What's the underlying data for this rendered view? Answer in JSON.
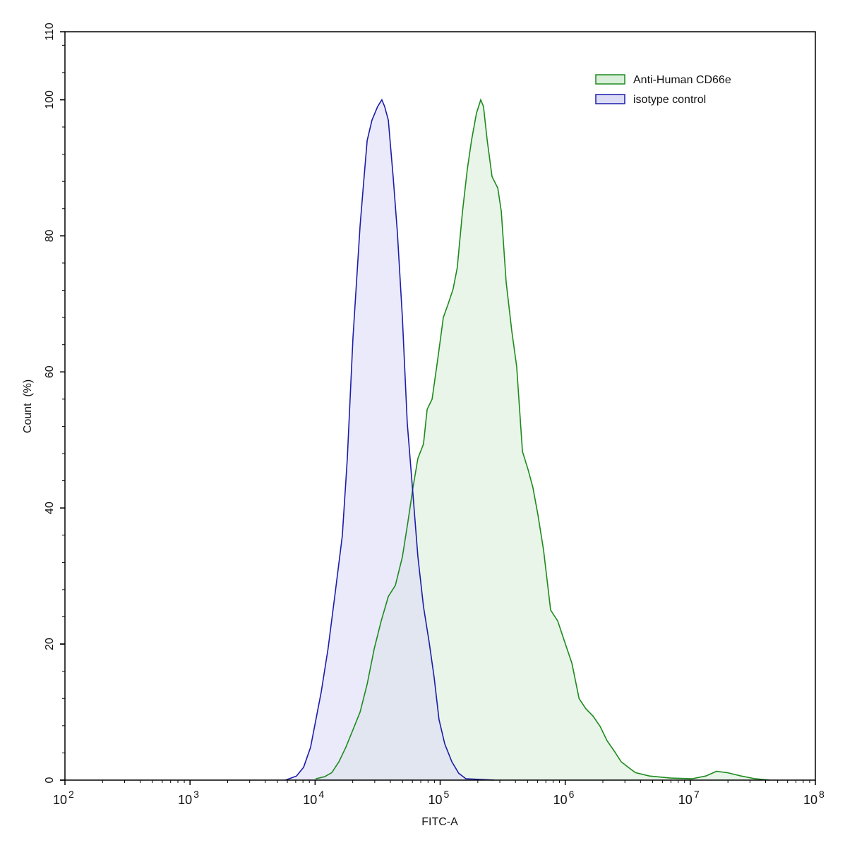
{
  "chart_data": {
    "type": "area",
    "title": "",
    "xlabel": "FITC-A",
    "ylabel": "Count  (%)",
    "x_scale": "log",
    "xlim": [
      100,
      100000000
    ],
    "ylim": [
      0,
      110
    ],
    "grid": false,
    "legend_placement": "top-right",
    "x_ticks": [
      {
        "base": "10",
        "exp": "2",
        "value": 100
      },
      {
        "base": "10",
        "exp": "3",
        "value": 1000
      },
      {
        "base": "10",
        "exp": "4",
        "value": 10000
      },
      {
        "base": "10",
        "exp": "5",
        "value": 100000
      },
      {
        "base": "10",
        "exp": "6",
        "value": 1000000
      },
      {
        "base": "10",
        "exp": "7",
        "value": 10000000
      },
      {
        "base": "10",
        "exp": "8",
        "value": 100000000
      }
    ],
    "y_ticks": [
      "0",
      "20",
      "40",
      "60",
      "80",
      "100",
      "110"
    ],
    "series": [
      {
        "name": "Anti-Human CD66e",
        "line_color": "#1e8a1e",
        "fill_color": "#d9efd9",
        "x": [
          10100.0,
          11900.0,
          13600.0,
          15500.0,
          17600.0,
          20100.0,
          22900.0,
          26100.0,
          29700.0,
          33800.0,
          38500.0,
          43800.0,
          49900.0,
          55300.0,
          60600.0,
          66400.0,
          73600.0,
          78700.0,
          86200.0,
          95500.0,
          106000.0,
          116000.0,
          127000.0,
          137000.0,
          151000.0,
          165000.0,
          178000.0,
          195000.0,
          211000.0,
          222000.0,
          238000.0,
          260000.0,
          289000.0,
          308000.0,
          337000.0,
          374000.0,
          409000.0,
          455000.0,
          504000.0,
          552000.0,
          605000.0,
          671000.0,
          764000.0,
          871000.0,
          991000.0,
          1130000.0,
          1290000.0,
          1460000.0,
          1670000.0,
          1900000.0,
          2160000.0,
          2460000.0,
          2800000.0,
          3190000.0,
          3640000.0,
          4710000.0,
          6960000.0,
          10300000.0,
          13300000.0,
          16200000.0,
          19700000.0,
          25500000.0,
          33100000.0,
          43000000.0
        ],
        "y": [
          0.2,
          0.5,
          1.1,
          2.7,
          4.8,
          7.4,
          10,
          14.1,
          19.3,
          23.4,
          27,
          28.6,
          32.8,
          38,
          43,
          47.3,
          49.4,
          54.5,
          56,
          61.8,
          68,
          70,
          72.2,
          75.3,
          83.6,
          89.8,
          94,
          98,
          100,
          99,
          94,
          88.7,
          87,
          83.6,
          73.2,
          66,
          60.8,
          48.3,
          45.7,
          43,
          39,
          33.8,
          25,
          23.4,
          20.3,
          17.2,
          12,
          10.5,
          9.4,
          7.9,
          5.8,
          4.3,
          2.7,
          1.9,
          1.1,
          0.6,
          0.3,
          0.2,
          0.6,
          1.3,
          1.1,
          0.6,
          0.2,
          0
        ]
      },
      {
        "name": "isotype control",
        "line_color": "#1c1caa",
        "fill_color": "#dcdcf7",
        "x": [
          5800.0,
          7100.0,
          8100.0,
          9200.0,
          11200.0,
          12700.0,
          14500.0,
          16500.0,
          18100.0,
          20100.0,
          22900.0,
          24400.0,
          26100.0,
          28500.0,
          31600.0,
          34200.0,
          36000.0,
          38500.0,
          42100.0,
          45500.0,
          49900.0,
          54600.0,
          60600.0,
          66400.0,
          73600.0,
          81700.0,
          89500.0,
          98000.0,
          109000.0,
          124000.0,
          141000.0,
          161000.0,
          270000.0
        ],
        "y": [
          0,
          0.6,
          1.9,
          4.8,
          13,
          19.3,
          27.6,
          35.9,
          47.3,
          65,
          81.5,
          87.7,
          94,
          97,
          99,
          100,
          99,
          97,
          88.7,
          80.5,
          68,
          52.5,
          42,
          32.8,
          25.5,
          20.3,
          15.1,
          8.9,
          5.3,
          2.7,
          1,
          0.2,
          0
        ]
      }
    ]
  }
}
